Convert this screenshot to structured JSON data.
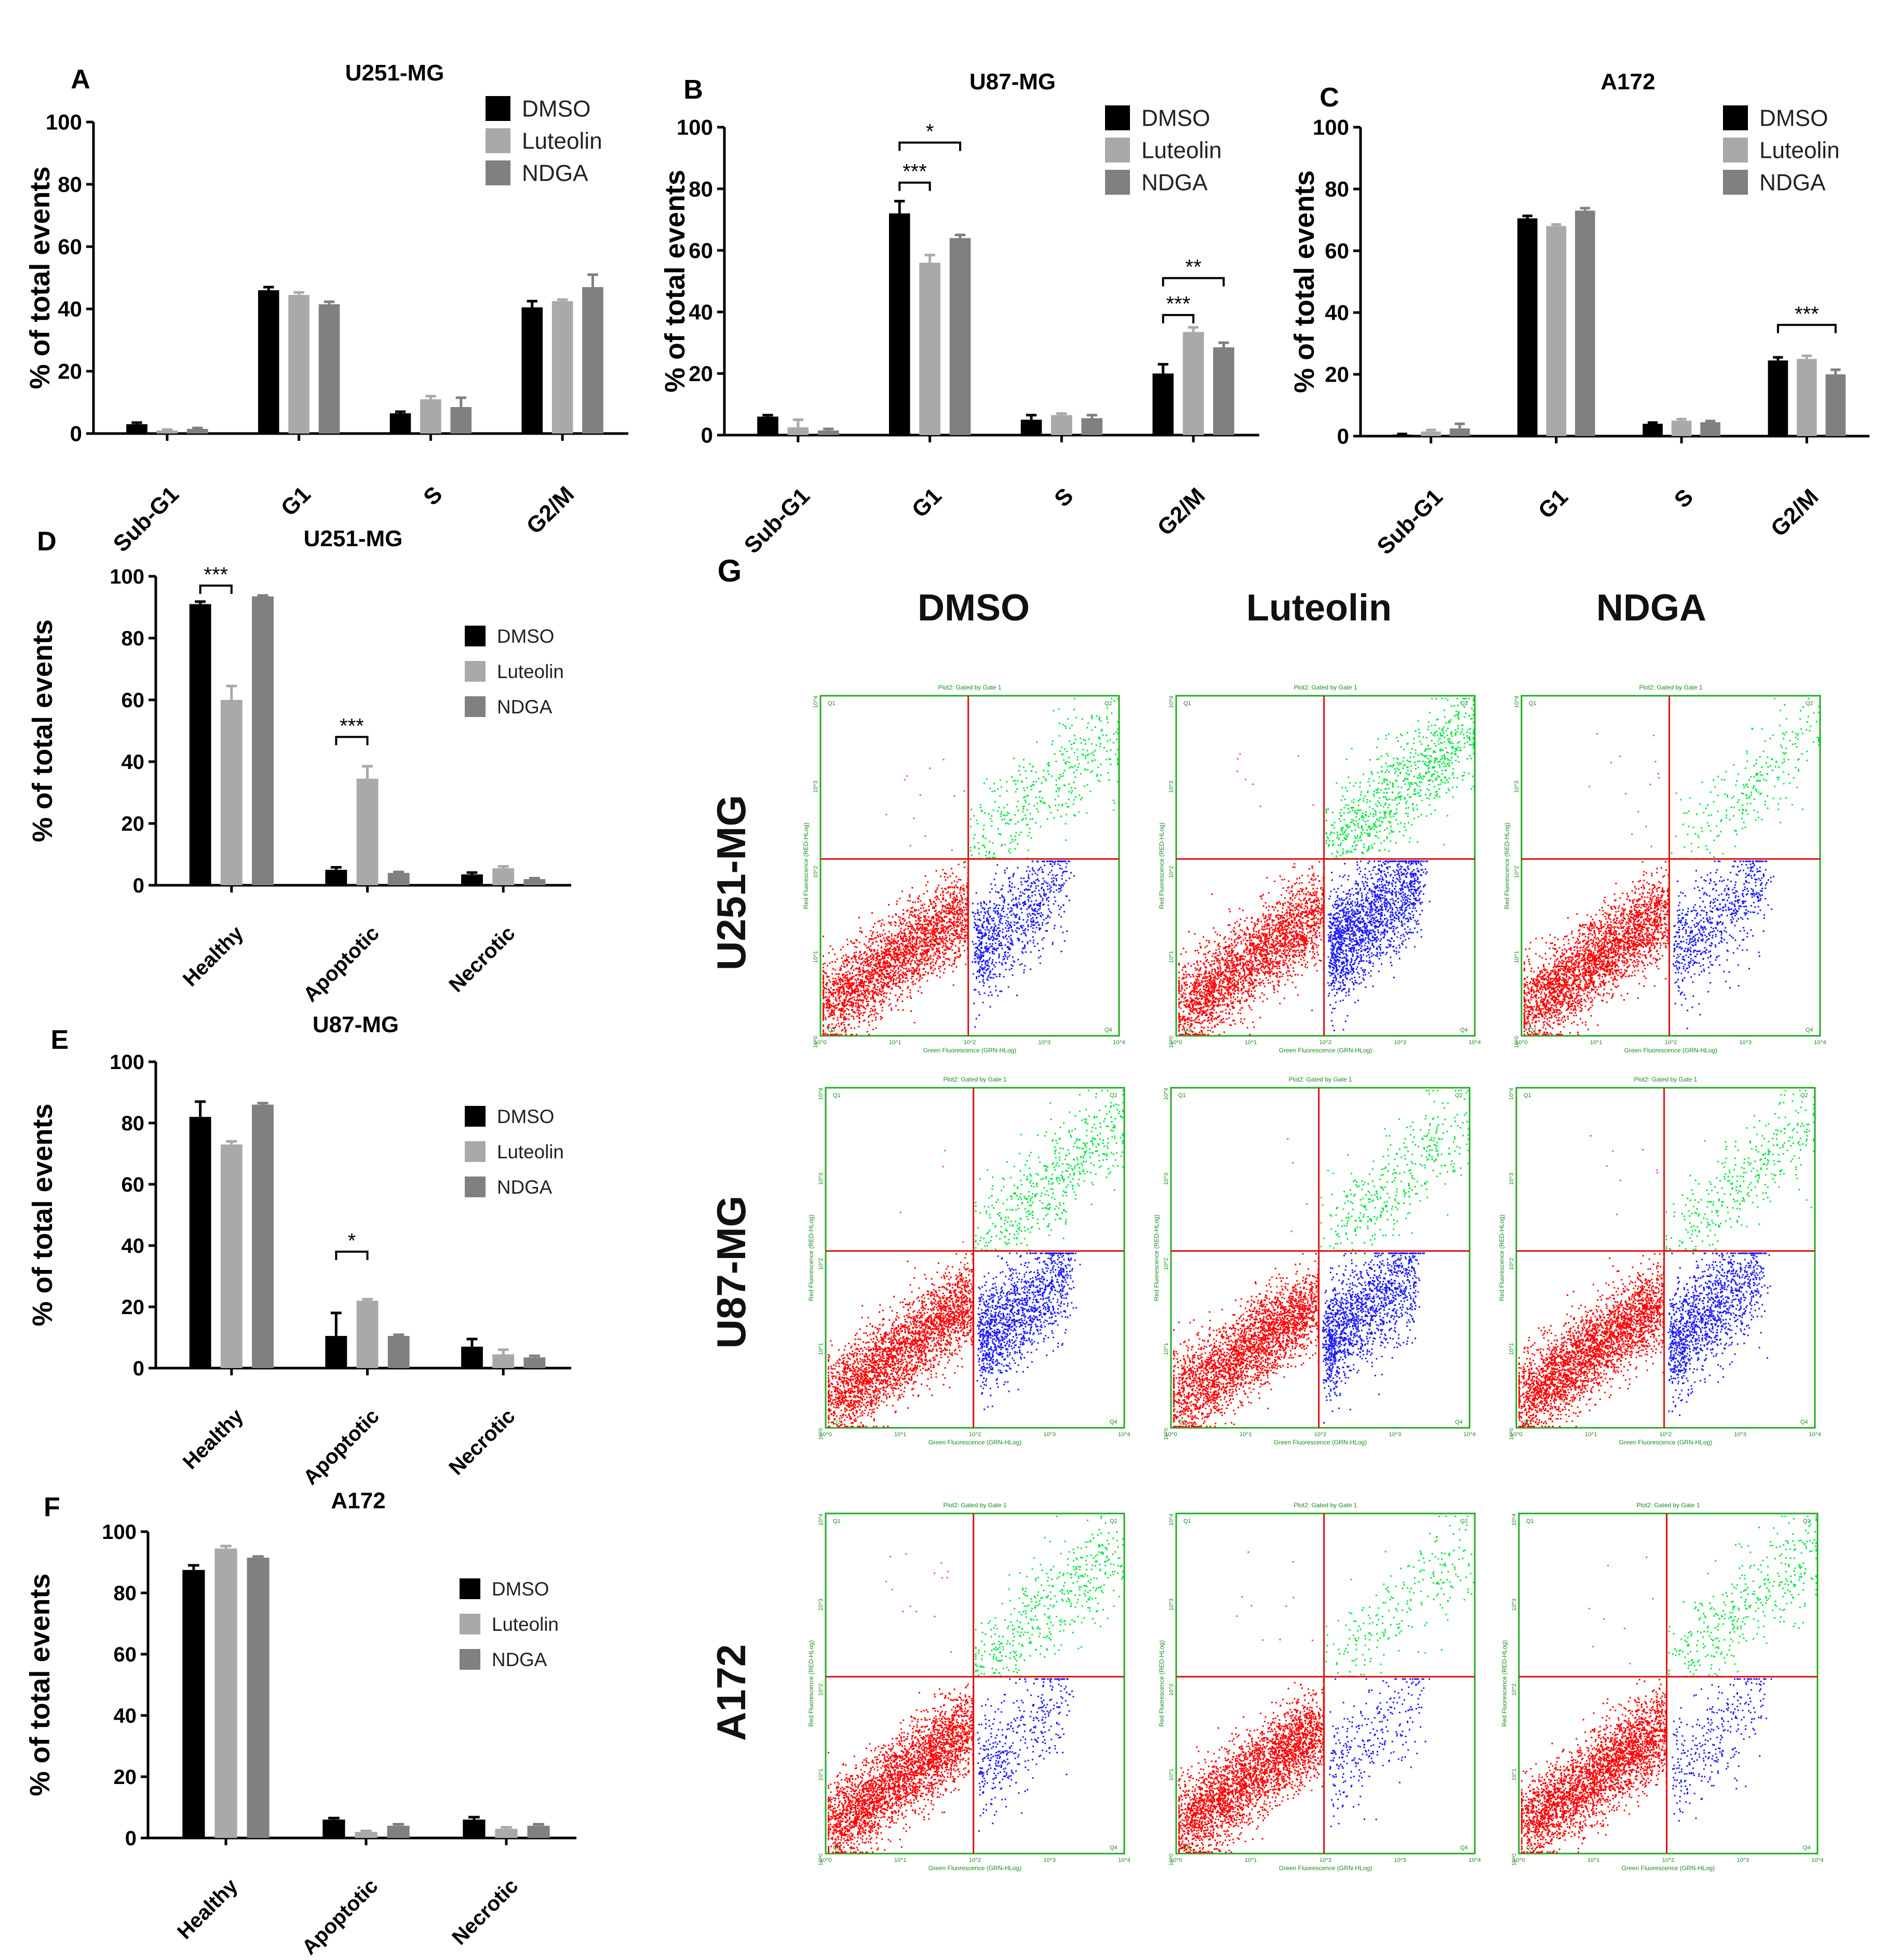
{
  "figure": {
    "panel_letters": [
      "A",
      "B",
      "C",
      "D",
      "E",
      "F",
      "G"
    ],
    "flow_title": "G"
  },
  "colors": {
    "DMSO": "#000000",
    "Luteolin": "#a9a9a9",
    "NDGA": "#808080",
    "frame": "#22aa22",
    "quadrant_line": "#dd1111",
    "dot_red": "#ff0000",
    "dot_blue": "#1a1aff",
    "dot_green": "#00e640",
    "dot_magenta": "#ff33ff",
    "tiny_text": "#1a8a1a"
  },
  "chart_data": [
    {
      "panel": "A",
      "type": "bar",
      "title": "U251-MG",
      "ylabel": "% of total events",
      "ylim": [
        0,
        100
      ],
      "yticks": [
        0,
        20,
        40,
        60,
        80,
        100
      ],
      "categories": [
        "Sub-G1",
        "G1",
        "S",
        "G2/M"
      ],
      "series": [
        {
          "name": "DMSO",
          "values": [
            3,
            46,
            6.5,
            40.5
          ],
          "errors": [
            0.5,
            1,
            0.5,
            2
          ]
        },
        {
          "name": "Luteolin",
          "values": [
            1,
            44.5,
            11,
            42.5
          ],
          "errors": [
            0.3,
            0.8,
            1,
            0.5
          ]
        },
        {
          "name": "NDGA",
          "values": [
            1.5,
            41.5,
            8.5,
            47
          ],
          "errors": [
            0.3,
            0.8,
            3,
            4
          ]
        }
      ],
      "significance": []
    },
    {
      "panel": "B",
      "type": "bar",
      "title": "U87-MG",
      "ylabel": "% of total events",
      "ylim": [
        0,
        100
      ],
      "yticks": [
        0,
        20,
        40,
        60,
        80,
        100
      ],
      "categories": [
        "Sub-G1",
        "G1",
        "S",
        "G2/M"
      ],
      "series": [
        {
          "name": "DMSO",
          "values": [
            6,
            72,
            5,
            20
          ],
          "errors": [
            0.5,
            4,
            1.5,
            3
          ]
        },
        {
          "name": "Luteolin",
          "values": [
            2.5,
            56,
            6.5,
            33.5
          ],
          "errors": [
            2.5,
            2.5,
            0.5,
            1.5
          ]
        },
        {
          "name": "NDGA",
          "values": [
            1.5,
            64,
            5.5,
            28.5
          ],
          "errors": [
            0.5,
            1,
            1,
            1.5
          ]
        }
      ],
      "significance": [
        {
          "category": 1,
          "from": 0,
          "to": 1,
          "label": "***",
          "level": 82
        },
        {
          "category": 1,
          "from": 0,
          "to": 2,
          "label": "*",
          "level": 95
        },
        {
          "category": 3,
          "from": 0,
          "to": 1,
          "label": "***",
          "level": 39
        },
        {
          "category": 3,
          "from": 0,
          "to": 2,
          "label": "**",
          "level": 51
        }
      ]
    },
    {
      "panel": "C",
      "type": "bar",
      "title": "A172",
      "ylabel": "% of total events",
      "ylim": [
        0,
        100
      ],
      "yticks": [
        0,
        20,
        40,
        60,
        80,
        100
      ],
      "categories": [
        "Sub-G1",
        "G1",
        "S",
        "G2/M"
      ],
      "series": [
        {
          "name": "DMSO",
          "values": [
            0.5,
            70.5,
            4,
            24.5
          ],
          "errors": [
            0.2,
            0.8,
            0.4,
            1
          ]
        },
        {
          "name": "Luteolin",
          "values": [
            1.5,
            68,
            5,
            25
          ],
          "errors": [
            0.5,
            0.5,
            0.5,
            1
          ]
        },
        {
          "name": "NDGA",
          "values": [
            2.5,
            73,
            4.5,
            20
          ],
          "errors": [
            1.5,
            0.8,
            0.4,
            1.5
          ]
        }
      ],
      "significance": [
        {
          "category": 3,
          "from": 0,
          "to": 2,
          "label": "***",
          "level": 36
        }
      ]
    },
    {
      "panel": "D",
      "type": "bar",
      "title": "U251-MG",
      "ylabel": "% of total events",
      "ylim": [
        0,
        100
      ],
      "yticks": [
        0,
        20,
        40,
        60,
        80,
        100
      ],
      "categories": [
        "Healthy",
        "Apoptotic",
        "Necrotic"
      ],
      "series": [
        {
          "name": "DMSO",
          "values": [
            91,
            5,
            3.5
          ],
          "errors": [
            0.8,
            0.8,
            0.6
          ]
        },
        {
          "name": "Luteolin",
          "values": [
            60,
            34.5,
            5.5
          ],
          "errors": [
            4.5,
            4,
            0.6
          ]
        },
        {
          "name": "NDGA",
          "values": [
            93.5,
            4,
            2
          ],
          "errors": [
            0.3,
            0.3,
            0.3
          ]
        }
      ],
      "significance": [
        {
          "category": 0,
          "from": 0,
          "to": 1,
          "label": "***",
          "level": 97
        },
        {
          "category": 1,
          "from": 0,
          "to": 1,
          "label": "***",
          "level": 48
        }
      ]
    },
    {
      "panel": "E",
      "type": "bar",
      "title": "U87-MG",
      "ylabel": "% of total events",
      "ylim": [
        0,
        100
      ],
      "yticks": [
        0,
        20,
        40,
        60,
        80,
        100
      ],
      "categories": [
        "Healthy",
        "Apoptotic",
        "Necrotic"
      ],
      "series": [
        {
          "name": "DMSO",
          "values": [
            82,
            10.5,
            7
          ],
          "errors": [
            5,
            7.5,
            2.5
          ]
        },
        {
          "name": "Luteolin",
          "values": [
            73,
            22,
            4.5
          ],
          "errors": [
            1,
            0.5,
            1.5
          ]
        },
        {
          "name": "NDGA",
          "values": [
            86,
            10.5,
            3.5
          ],
          "errors": [
            0.5,
            0.4,
            0.5
          ]
        }
      ],
      "significance": [
        {
          "category": 1,
          "from": 0,
          "to": 1,
          "label": "*",
          "level": 38
        }
      ]
    },
    {
      "panel": "F",
      "type": "bar",
      "title": "A172",
      "ylabel": "% of total events",
      "ylim": [
        0,
        100
      ],
      "yticks": [
        0,
        20,
        40,
        60,
        80,
        100
      ],
      "categories": [
        "Healthy",
        "Apoptotic",
        "Necrotic"
      ],
      "series": [
        {
          "name": "DMSO",
          "values": [
            87.5,
            6,
            6
          ],
          "errors": [
            1.5,
            0.5,
            0.8
          ]
        },
        {
          "name": "Luteolin",
          "values": [
            94.5,
            2,
            3
          ],
          "errors": [
            0.8,
            0.3,
            0.5
          ]
        },
        {
          "name": "NDGA",
          "values": [
            91.5,
            4,
            4
          ],
          "errors": [
            0.4,
            0.5,
            0.5
          ]
        }
      ],
      "significance": []
    },
    {
      "panel": "G",
      "type": "scatter",
      "description_columns": [
        "DMSO",
        "Luteolin",
        "NDGA"
      ],
      "description_rows": [
        "U251-MG",
        "U87-MG",
        "A172"
      ],
      "plot_header": "Plot2: Gated by Gate 1",
      "x_axis_label": "Green Fluorescence (GRN-HLog)",
      "y_axis_label": "Red Fluorescence (RED-HLog)",
      "decade_labels": [
        "10^0",
        "10^1",
        "10^2",
        "10^3",
        "10^4"
      ],
      "quadrant_labels": [
        "Q1",
        "Q2",
        "Q3",
        "Q4"
      ],
      "plots": [
        [
          {
            "red": 2600,
            "blue": 900,
            "green": 420,
            "magenta": 12
          },
          {
            "red": 2600,
            "blue": 1800,
            "green": 900,
            "magenta": 8
          },
          {
            "red": 2800,
            "blue": 700,
            "green": 260,
            "magenta": 14
          }
        ],
        [
          {
            "red": 2800,
            "blue": 1400,
            "green": 560,
            "magenta": 4
          },
          {
            "red": 2800,
            "blue": 1500,
            "green": 420,
            "magenta": 4
          },
          {
            "red": 3000,
            "blue": 1300,
            "green": 380,
            "magenta": 8
          }
        ],
        [
          {
            "red": 3000,
            "blue": 420,
            "green": 500,
            "magenta": 14
          },
          {
            "red": 3000,
            "blue": 300,
            "green": 260,
            "magenta": 10
          },
          {
            "red": 3000,
            "blue": 320,
            "green": 420,
            "magenta": 8
          }
        ]
      ]
    }
  ]
}
